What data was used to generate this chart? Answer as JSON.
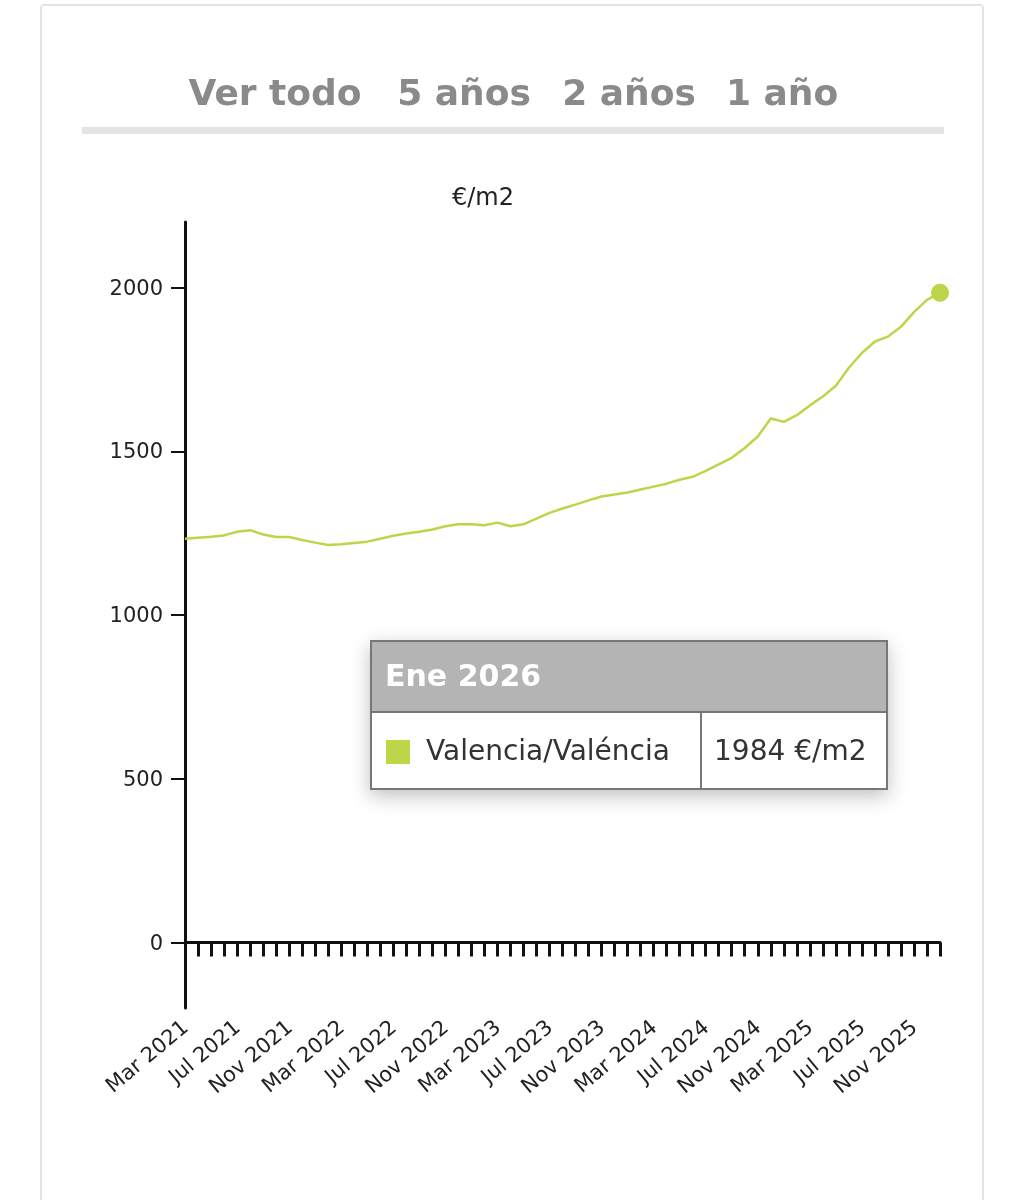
{
  "chart_data": {
    "type": "line",
    "ylabel": "€/m2",
    "categories": [
      "Mar 2021",
      null,
      null,
      null,
      "Jul 2021",
      null,
      null,
      null,
      "Nov 2021",
      null,
      null,
      null,
      "Mar 2022",
      null,
      null,
      null,
      "Jul 2022",
      null,
      null,
      null,
      "Nov 2022",
      null,
      null,
      null,
      "Mar 2023",
      null,
      null,
      null,
      "Jul 2023",
      null,
      null,
      null,
      "Nov 2023",
      null,
      null,
      null,
      "Mar 2024",
      null,
      null,
      null,
      "Jul 2024",
      null,
      null,
      null,
      "Nov 2024",
      null,
      null,
      null,
      "Mar 2025",
      null,
      null,
      null,
      "Jul 2025",
      null,
      null,
      null,
      "Nov 2025",
      null,
      null
    ],
    "series": [
      {
        "name": "Valencia/Valéncia",
        "color": "#bcd64a",
        "values": [
          1233,
          1236,
          1239,
          1243,
          1254,
          1259,
          1246,
          1238,
          1238,
          1229,
          1221,
          1214,
          1216,
          1220,
          1224,
          1233,
          1242,
          1249,
          1254,
          1261,
          1271,
          1277,
          1277,
          1274,
          1282,
          1271,
          1277,
          1294,
          1312,
          1325,
          1337,
          1350,
          1362,
          1368,
          1374,
          1383,
          1392,
          1401,
          1413,
          1422,
          1440,
          1460,
          1480,
          1510,
          1545,
          1600,
          1590,
          1610,
          1640,
          1667,
          1700,
          1755,
          1800,
          1835,
          1850,
          1880,
          1925,
          1962,
          1984
        ]
      }
    ],
    "ylim": [
      -200,
      2200
    ],
    "yticks": [
      0,
      500,
      1000,
      1500,
      2000
    ],
    "legend": "bottom left",
    "annotations": [
      "Ver todo",
      "5 años",
      "2 años",
      "1 año",
      "Ene 2026",
      "1984 €/m2"
    ]
  }
}
